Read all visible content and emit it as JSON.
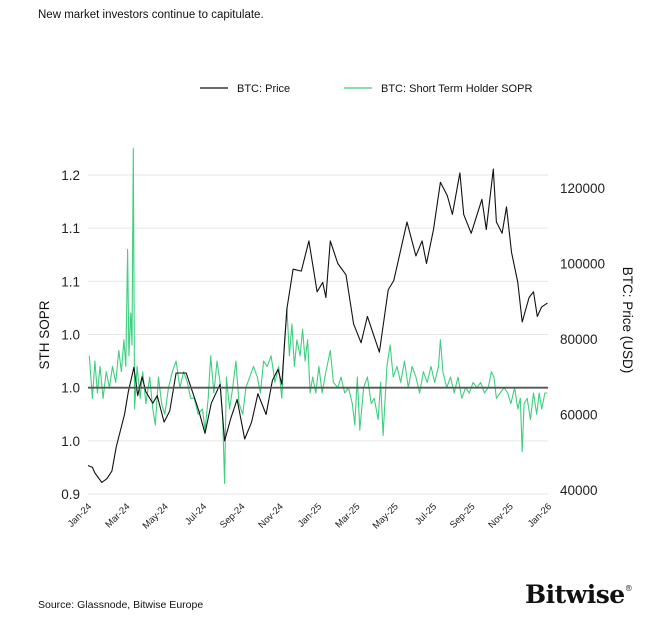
{
  "title": "New market investors continue to capitulate.",
  "source": "Source: Glassnode, Bitwise Europe",
  "logo": {
    "text": "Bitwise",
    "mark": "®"
  },
  "chart_data": {
    "type": "line",
    "title": "",
    "legend": {
      "placement": "top-center",
      "entries": [
        "BTC: Price",
        "BTC: Short Term Holder SOPR"
      ]
    },
    "colors": {
      "price": "#111111",
      "sopr": "#3ecf7f",
      "baseline": "#555555",
      "grid": "#e6e6e6"
    },
    "grid": true,
    "x_ticks": [
      "Jan-24",
      "Mar-24",
      "May-24",
      "Jul-24",
      "Sep-24",
      "Nov-24",
      "Jan-25",
      "Mar-25",
      "May-25",
      "Jul-25",
      "Sep-25",
      "Nov-25",
      "Jan-26"
    ],
    "y_left": {
      "label": "STH SOPR",
      "range": [
        0.9,
        1.2
      ],
      "ticks": [
        {
          "v": 1.2,
          "t": "1.2"
        },
        {
          "v": 1.15,
          "t": "1.1"
        },
        {
          "v": 1.1,
          "t": "1.1"
        },
        {
          "v": 1.05,
          "t": "1.0"
        },
        {
          "v": 1.0,
          "t": "1.0"
        },
        {
          "v": 0.95,
          "t": "1.0"
        },
        {
          "v": 0.9,
          "t": "0.9"
        }
      ],
      "reference_line": 1.0
    },
    "y_right": {
      "label": "BTC: Price (USD)",
      "range": [
        40000,
        124000
      ],
      "ticks": [
        {
          "v": 120000,
          "t": "120000"
        },
        {
          "v": 100000,
          "t": "100000"
        },
        {
          "v": 80000,
          "t": "80000"
        },
        {
          "v": 60000,
          "t": "60000"
        },
        {
          "v": 40000,
          "t": "40000"
        }
      ]
    },
    "series": [
      {
        "name": "BTC: Price",
        "axis": "right",
        "points": [
          [
            "2024-01-01",
            46500
          ],
          [
            "2024-01-08",
            46000
          ],
          [
            "2024-01-12",
            44500
          ],
          [
            "2024-01-23",
            42000
          ],
          [
            "2024-01-31",
            43000
          ],
          [
            "2024-02-08",
            45000
          ],
          [
            "2024-02-15",
            51500
          ],
          [
            "2024-02-28",
            60000
          ],
          [
            "2024-03-05",
            66000
          ],
          [
            "2024-03-14",
            72500
          ],
          [
            "2024-03-20",
            65000
          ],
          [
            "2024-03-27",
            70000
          ],
          [
            "2024-04-02",
            66000
          ],
          [
            "2024-04-13",
            63000
          ],
          [
            "2024-04-20",
            65000
          ],
          [
            "2024-05-01",
            58000
          ],
          [
            "2024-05-10",
            61000
          ],
          [
            "2024-05-20",
            71000
          ],
          [
            "2024-06-05",
            71000
          ],
          [
            "2024-06-15",
            66000
          ],
          [
            "2024-06-25",
            61000
          ],
          [
            "2024-07-05",
            55000
          ],
          [
            "2024-07-15",
            63000
          ],
          [
            "2024-07-29",
            68000
          ],
          [
            "2024-08-05",
            53000
          ],
          [
            "2024-08-15",
            59000
          ],
          [
            "2024-08-25",
            64000
          ],
          [
            "2024-09-06",
            53500
          ],
          [
            "2024-09-17",
            58000
          ],
          [
            "2024-09-27",
            65500
          ],
          [
            "2024-10-10",
            60000
          ],
          [
            "2024-10-20",
            69000
          ],
          [
            "2024-10-29",
            72000
          ],
          [
            "2024-11-04",
            68000
          ],
          [
            "2024-11-12",
            88000
          ],
          [
            "2024-11-22",
            98500
          ],
          [
            "2024-12-05",
            98000
          ],
          [
            "2024-12-17",
            106000
          ],
          [
            "2024-12-30",
            92500
          ],
          [
            "2025-01-08",
            95000
          ],
          [
            "2025-01-13",
            91000
          ],
          [
            "2025-01-20",
            106000
          ],
          [
            "2025-02-01",
            100000
          ],
          [
            "2025-02-14",
            97000
          ],
          [
            "2025-02-26",
            84000
          ],
          [
            "2025-03-10",
            79000
          ],
          [
            "2025-03-20",
            86000
          ],
          [
            "2025-04-08",
            76500
          ],
          [
            "2025-04-22",
            93000
          ],
          [
            "2025-05-01",
            95500
          ],
          [
            "2025-05-22",
            111000
          ],
          [
            "2025-06-05",
            102000
          ],
          [
            "2025-06-15",
            106000
          ],
          [
            "2025-06-22",
            100000
          ],
          [
            "2025-07-03",
            109000
          ],
          [
            "2025-07-14",
            121500
          ],
          [
            "2025-07-25",
            118000
          ],
          [
            "2025-08-02",
            113000
          ],
          [
            "2025-08-14",
            124000
          ],
          [
            "2025-08-20",
            113000
          ],
          [
            "2025-09-01",
            108000
          ],
          [
            "2025-09-18",
            117000
          ],
          [
            "2025-09-25",
            109000
          ],
          [
            "2025-10-06",
            125000
          ],
          [
            "2025-10-11",
            111000
          ],
          [
            "2025-10-20",
            108000
          ],
          [
            "2025-10-27",
            115000
          ],
          [
            "2025-11-04",
            103000
          ],
          [
            "2025-11-14",
            95000
          ],
          [
            "2025-11-21",
            84500
          ],
          [
            "2025-12-02",
            91000
          ],
          [
            "2025-12-09",
            92500
          ],
          [
            "2025-12-15",
            86000
          ],
          [
            "2025-12-22",
            88500
          ],
          [
            "2025-12-31",
            89500
          ]
        ]
      },
      {
        "name": "BTC: Short Term Holder SOPR",
        "axis": "left",
        "points": [
          [
            "2024-01-03",
            1.03
          ],
          [
            "2024-01-08",
            0.99
          ],
          [
            "2024-01-12",
            1.025
          ],
          [
            "2024-01-16",
            0.995
          ],
          [
            "2024-01-20",
            1.02
          ],
          [
            "2024-01-25",
            0.99
          ],
          [
            "2024-01-30",
            1.015
          ],
          [
            "2024-02-04",
            1.0
          ],
          [
            "2024-02-09",
            1.02
          ],
          [
            "2024-02-14",
            1.005
          ],
          [
            "2024-02-19",
            1.035
          ],
          [
            "2024-02-23",
            1.015
          ],
          [
            "2024-02-27",
            1.045
          ],
          [
            "2024-03-01",
            1.02
          ],
          [
            "2024-03-04",
            1.13
          ],
          [
            "2024-03-06",
            1.03
          ],
          [
            "2024-03-09",
            1.07
          ],
          [
            "2024-03-11",
            1.04
          ],
          [
            "2024-03-13",
            1.225
          ],
          [
            "2024-03-15",
            0.98
          ],
          [
            "2024-03-19",
            1.02
          ],
          [
            "2024-03-24",
            0.99
          ],
          [
            "2024-03-28",
            1.015
          ],
          [
            "2024-04-02",
            0.985
          ],
          [
            "2024-04-08",
            1.01
          ],
          [
            "2024-04-13",
            0.98
          ],
          [
            "2024-04-17",
            0.965
          ],
          [
            "2024-04-22",
            1.01
          ],
          [
            "2024-04-27",
            0.985
          ],
          [
            "2024-05-02",
            0.975
          ],
          [
            "2024-05-08",
            1.0
          ],
          [
            "2024-05-14",
            1.015
          ],
          [
            "2024-05-20",
            1.025
          ],
          [
            "2024-05-26",
            1.0
          ],
          [
            "2024-06-01",
            1.015
          ],
          [
            "2024-06-07",
            1.005
          ],
          [
            "2024-06-12",
            0.99
          ],
          [
            "2024-06-18",
            0.99
          ],
          [
            "2024-06-24",
            0.975
          ],
          [
            "2024-07-01",
            0.98
          ],
          [
            "2024-07-05",
            0.96
          ],
          [
            "2024-07-10",
            0.99
          ],
          [
            "2024-07-14",
            1.03
          ],
          [
            "2024-07-19",
            0.995
          ],
          [
            "2024-07-24",
            1.025
          ],
          [
            "2024-07-29",
            1.005
          ],
          [
            "2024-08-02",
            0.97
          ],
          [
            "2024-08-05",
            0.91
          ],
          [
            "2024-08-08",
            1.01
          ],
          [
            "2024-08-13",
            0.98
          ],
          [
            "2024-08-18",
            1.0
          ],
          [
            "2024-08-23",
            1.025
          ],
          [
            "2024-08-28",
            0.985
          ],
          [
            "2024-09-03",
            0.975
          ],
          [
            "2024-09-08",
            1.0
          ],
          [
            "2024-09-14",
            1.01
          ],
          [
            "2024-09-20",
            1.02
          ],
          [
            "2024-09-26",
            1.01
          ],
          [
            "2024-10-01",
            0.995
          ],
          [
            "2024-10-06",
            1.025
          ],
          [
            "2024-10-12",
            1.02
          ],
          [
            "2024-10-18",
            1.03
          ],
          [
            "2024-10-24",
            1.005
          ],
          [
            "2024-10-30",
            1.02
          ],
          [
            "2024-11-04",
            0.99
          ],
          [
            "2024-11-08",
            1.04
          ],
          [
            "2024-11-12",
            1.075
          ],
          [
            "2024-11-16",
            1.03
          ],
          [
            "2024-11-20",
            1.06
          ],
          [
            "2024-11-24",
            1.02
          ],
          [
            "2024-11-28",
            1.045
          ],
          [
            "2024-12-03",
            1.03
          ],
          [
            "2024-12-07",
            1.055
          ],
          [
            "2024-12-11",
            1.025
          ],
          [
            "2024-12-15",
            1.045
          ],
          [
            "2024-12-19",
            0.995
          ],
          [
            "2024-12-23",
            1.01
          ],
          [
            "2024-12-28",
            0.995
          ],
          [
            "2025-01-02",
            1.02
          ],
          [
            "2025-01-07",
            0.995
          ],
          [
            "2025-01-13",
            1.015
          ],
          [
            "2025-01-20",
            1.035
          ],
          [
            "2025-01-25",
            1.005
          ],
          [
            "2025-02-01",
            1.0
          ],
          [
            "2025-02-06",
            1.01
          ],
          [
            "2025-02-12",
            0.995
          ],
          [
            "2025-02-18",
            1.0
          ],
          [
            "2025-02-24",
            0.985
          ],
          [
            "2025-02-28",
            0.965
          ],
          [
            "2025-03-04",
            1.01
          ],
          [
            "2025-03-08",
            0.96
          ],
          [
            "2025-03-14",
            1.0
          ],
          [
            "2025-03-20",
            1.01
          ],
          [
            "2025-03-26",
            0.985
          ],
          [
            "2025-03-31",
            0.99
          ],
          [
            "2025-04-06",
            0.97
          ],
          [
            "2025-04-10",
            1.005
          ],
          [
            "2025-04-14",
            0.955
          ],
          [
            "2025-04-20",
            1.02
          ],
          [
            "2025-04-25",
            1.04
          ],
          [
            "2025-04-30",
            1.01
          ],
          [
            "2025-05-06",
            1.02
          ],
          [
            "2025-05-12",
            1.005
          ],
          [
            "2025-05-18",
            1.025
          ],
          [
            "2025-05-24",
            1.0
          ],
          [
            "2025-05-30",
            1.02
          ],
          [
            "2025-06-05",
            1.01
          ],
          [
            "2025-06-11",
            0.995
          ],
          [
            "2025-06-17",
            1.015
          ],
          [
            "2025-06-23",
            1.005
          ],
          [
            "2025-06-29",
            1.02
          ],
          [
            "2025-07-05",
            1.005
          ],
          [
            "2025-07-11",
            1.02
          ],
          [
            "2025-07-14",
            1.045
          ],
          [
            "2025-07-18",
            1.015
          ],
          [
            "2025-07-24",
            1.0
          ],
          [
            "2025-07-30",
            1.01
          ],
          [
            "2025-08-05",
            0.995
          ],
          [
            "2025-08-11",
            1.01
          ],
          [
            "2025-08-17",
            0.99
          ],
          [
            "2025-08-23",
            1.0
          ],
          [
            "2025-08-29",
            0.995
          ],
          [
            "2025-09-04",
            1.005
          ],
          [
            "2025-09-10",
            1.0
          ],
          [
            "2025-09-16",
            1.005
          ],
          [
            "2025-09-22",
            0.995
          ],
          [
            "2025-09-28",
            1.0
          ],
          [
            "2025-10-03",
            1.015
          ],
          [
            "2025-10-07",
            1.01
          ],
          [
            "2025-10-11",
            0.99
          ],
          [
            "2025-10-17",
            0.995
          ],
          [
            "2025-10-23",
            1.0
          ],
          [
            "2025-10-29",
            0.995
          ],
          [
            "2025-11-03",
            0.985
          ],
          [
            "2025-11-09",
            1.0
          ],
          [
            "2025-11-14",
            0.98
          ],
          [
            "2025-11-18",
            0.99
          ],
          [
            "2025-11-21",
            0.94
          ],
          [
            "2025-11-24",
            0.985
          ],
          [
            "2025-11-29",
            0.99
          ],
          [
            "2025-12-04",
            0.97
          ],
          [
            "2025-12-09",
            0.995
          ],
          [
            "2025-12-14",
            0.975
          ],
          [
            "2025-12-18",
            0.995
          ],
          [
            "2025-12-22",
            0.98
          ],
          [
            "2025-12-27",
            0.995
          ],
          [
            "2025-12-31",
            0.995
          ]
        ]
      }
    ]
  }
}
